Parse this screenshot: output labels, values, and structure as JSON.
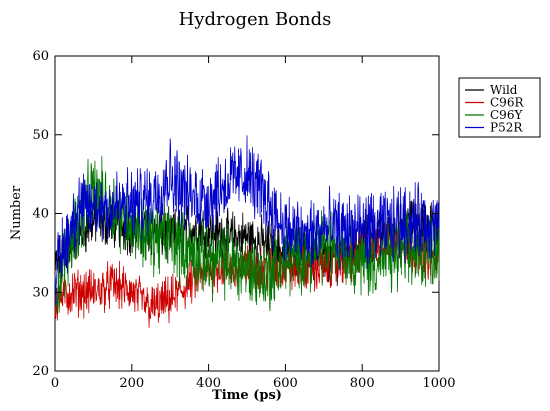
{
  "chart_data": {
    "type": "line",
    "title": "Hydrogen Bonds",
    "xlabel": "Time (ps)",
    "ylabel": "Number",
    "xlim": [
      0,
      1000
    ],
    "ylim": [
      20,
      60
    ],
    "xticks": [
      0,
      200,
      400,
      600,
      800,
      1000
    ],
    "yticks": [
      20,
      30,
      40,
      50,
      60
    ],
    "grid": false,
    "legend": "right",
    "series": [
      {
        "name": "Wild",
        "color": "#000000",
        "x": [
          0,
          50,
          100,
          150,
          200,
          250,
          300,
          350,
          400,
          450,
          500,
          550,
          600,
          650,
          700,
          750,
          800,
          850,
          900,
          950,
          1000
        ],
        "values": [
          33,
          37,
          39,
          39,
          38,
          38,
          37,
          38,
          38,
          37,
          37,
          36,
          35,
          35,
          34,
          35,
          36,
          37,
          38,
          39,
          38
        ]
      },
      {
        "name": "C96R",
        "color": "#cc0000",
        "x": [
          0,
          50,
          100,
          150,
          200,
          250,
          300,
          350,
          400,
          450,
          500,
          550,
          600,
          650,
          700,
          750,
          800,
          850,
          900,
          950,
          1000
        ],
        "values": [
          29,
          30,
          30,
          31,
          30,
          28,
          29,
          31,
          33,
          33,
          33,
          33,
          33,
          33,
          33,
          34,
          35,
          36,
          36,
          35,
          34
        ]
      },
      {
        "name": "C96Y",
        "color": "#007700",
        "x": [
          0,
          50,
          100,
          150,
          200,
          250,
          300,
          350,
          400,
          450,
          500,
          550,
          600,
          650,
          700,
          750,
          800,
          850,
          900,
          950,
          1000
        ],
        "values": [
          30,
          38,
          43,
          41,
          39,
          37,
          37,
          35,
          34,
          34,
          33,
          32,
          34,
          35,
          36,
          36,
          34,
          34,
          35,
          35,
          36
        ]
      },
      {
        "name": "P52R",
        "color": "#0000cc",
        "x": [
          0,
          50,
          100,
          150,
          200,
          250,
          300,
          350,
          400,
          450,
          500,
          550,
          600,
          650,
          700,
          750,
          800,
          850,
          900,
          950,
          1000
        ],
        "values": [
          32,
          40,
          41,
          41,
          41,
          42,
          45,
          42,
          42,
          44,
          45,
          42,
          38,
          37,
          38,
          38,
          38,
          38,
          39,
          39,
          38
        ]
      }
    ]
  }
}
